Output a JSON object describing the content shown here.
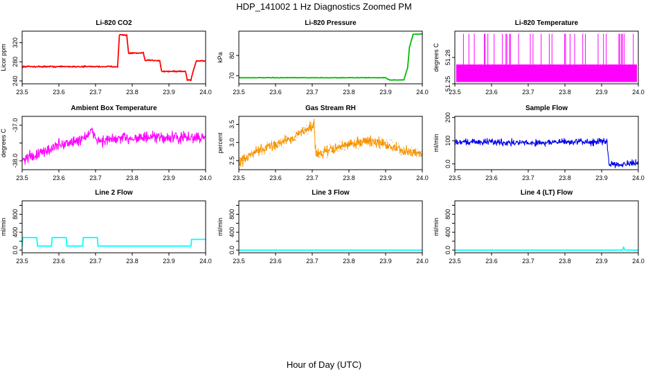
{
  "figure": {
    "title": "HDP_141002  1 Hz Diagnostics Zoomed PM",
    "xlabel": "Hour of Day (UTC)"
  },
  "chart_data": [
    {
      "type": "line",
      "title": "Li-820 CO2",
      "ylabel": "Licor ppm",
      "color": "#ff0000",
      "xlim": [
        23.5,
        24.0
      ],
      "ylim": [
        234,
        344
      ],
      "xticks": [
        23.5,
        23.6,
        23.7,
        23.8,
        23.9,
        24.0
      ],
      "yticks": [
        240,
        280,
        320
      ],
      "pattern": "steps",
      "noise": 1.2,
      "points": [
        [
          23.5,
          270
        ],
        [
          23.76,
          270
        ],
        [
          23.765,
          336
        ],
        [
          23.785,
          336
        ],
        [
          23.79,
          298
        ],
        [
          23.83,
          298
        ],
        [
          23.835,
          283
        ],
        [
          23.875,
          283
        ],
        [
          23.88,
          260
        ],
        [
          23.945,
          260
        ],
        [
          23.95,
          242
        ],
        [
          23.96,
          242
        ],
        [
          23.965,
          258
        ],
        [
          23.975,
          282
        ],
        [
          24.0,
          282
        ]
      ]
    },
    {
      "type": "line",
      "title": "Li-820 Pressure",
      "ylabel": "kPa",
      "color": "#00bb00",
      "xlim": [
        23.5,
        24.0
      ],
      "ylim": [
        66,
        92
      ],
      "xticks": [
        23.5,
        23.6,
        23.7,
        23.8,
        23.9,
        24.0
      ],
      "yticks": [
        70,
        80
      ],
      "pattern": "steps",
      "noise": 0.12,
      "points": [
        [
          23.5,
          69.0
        ],
        [
          23.9,
          69.0
        ],
        [
          23.91,
          67.9
        ],
        [
          23.95,
          67.9
        ],
        [
          23.96,
          74
        ],
        [
          23.965,
          84
        ],
        [
          23.975,
          90.5
        ],
        [
          24.0,
          90.5
        ]
      ]
    },
    {
      "type": "line",
      "title": "Li-820 Temperature",
      "ylabel": "degrees C",
      "color": "#ff00ff",
      "xlim": [
        23.5,
        24.0
      ],
      "ylim": [
        51.25,
        51.31
      ],
      "xticks": [
        23.5,
        23.6,
        23.7,
        23.8,
        23.9,
        24.0
      ],
      "yticks": [
        51.25,
        51.28
      ],
      "pattern": "binary",
      "low": 51.252,
      "high": 51.272,
      "spike": 51.307,
      "spike_prob": 0.18
    },
    {
      "type": "line",
      "title": "Ambient Box Temperature",
      "ylabel": "degrees C",
      "color": "#ff00ff",
      "xlim": [
        23.5,
        24.0
      ],
      "ylim": [
        -38.25,
        -36.75
      ],
      "xticks": [
        23.5,
        23.6,
        23.7,
        23.8,
        23.9,
        24.0
      ],
      "yticks": [
        -38.0,
        -37.5,
        -37.0
      ],
      "ytick_labels": [
        "-38.0",
        "",
        "-37.0"
      ],
      "pattern": "noisy",
      "noise": 0.14,
      "points": [
        [
          23.5,
          -37.95
        ],
        [
          23.55,
          -37.8
        ],
        [
          23.6,
          -37.55
        ],
        [
          23.65,
          -37.45
        ],
        [
          23.69,
          -37.2
        ],
        [
          23.71,
          -37.45
        ],
        [
          23.75,
          -37.4
        ],
        [
          23.8,
          -37.35
        ],
        [
          23.9,
          -37.35
        ],
        [
          24.0,
          -37.35
        ]
      ]
    },
    {
      "type": "line",
      "title": "Gas Stream RH",
      "ylabel": "percent",
      "color": "#ff9900",
      "xlim": [
        23.5,
        24.0
      ],
      "ylim": [
        2.25,
        3.72
      ],
      "xticks": [
        23.5,
        23.6,
        23.7,
        23.8,
        23.9,
        24.0
      ],
      "yticks": [
        2.5,
        3.0,
        3.5
      ],
      "pattern": "noisy",
      "noise": 0.12,
      "points": [
        [
          23.5,
          2.45
        ],
        [
          23.55,
          2.75
        ],
        [
          23.6,
          2.95
        ],
        [
          23.65,
          3.15
        ],
        [
          23.69,
          3.4
        ],
        [
          23.705,
          3.5
        ],
        [
          23.71,
          2.65
        ],
        [
          23.75,
          2.8
        ],
        [
          23.8,
          2.95
        ],
        [
          23.85,
          3.05
        ],
        [
          23.9,
          2.95
        ],
        [
          23.95,
          2.75
        ],
        [
          24.0,
          2.7
        ]
      ]
    },
    {
      "type": "line",
      "title": "Sample Flow",
      "ylabel": "ml/min",
      "color": "#0000ee",
      "xlim": [
        23.5,
        24.0
      ],
      "ylim": [
        -25,
        205
      ],
      "xticks": [
        23.5,
        23.6,
        23.7,
        23.8,
        23.9,
        24.0
      ],
      "yticks": [
        0,
        100,
        200
      ],
      "pattern": "noisy",
      "noise": 12,
      "points": [
        [
          23.5,
          95
        ],
        [
          23.6,
          95
        ],
        [
          23.7,
          90
        ],
        [
          23.8,
          95
        ],
        [
          23.915,
          95
        ],
        [
          23.92,
          0
        ],
        [
          24.0,
          0
        ]
      ]
    },
    {
      "type": "line",
      "title": "Line 2 Flow",
      "ylabel": "ml/min",
      "color": "#00ffff",
      "xlim": [
        23.5,
        24.0
      ],
      "ylim": [
        -60,
        1100
      ],
      "xticks": [
        23.5,
        23.6,
        23.7,
        23.8,
        23.9,
        24.0
      ],
      "yticks": [
        0,
        400,
        800
      ],
      "ytick_minor": [
        200,
        600,
        1000
      ],
      "pattern": "steps",
      "noise": 0,
      "points": [
        [
          23.5,
          90
        ],
        [
          23.501,
          280
        ],
        [
          23.54,
          280
        ],
        [
          23.541,
          90
        ],
        [
          23.58,
          90
        ],
        [
          23.581,
          280
        ],
        [
          23.62,
          280
        ],
        [
          23.621,
          90
        ],
        [
          23.665,
          90
        ],
        [
          23.666,
          280
        ],
        [
          23.705,
          280
        ],
        [
          23.706,
          90
        ],
        [
          23.96,
          90
        ],
        [
          23.961,
          240
        ],
        [
          24.0,
          240
        ]
      ]
    },
    {
      "type": "line",
      "title": "Line 3 Flow",
      "ylabel": "ml/min",
      "color": "#00ffff",
      "xlim": [
        23.5,
        24.0
      ],
      "ylim": [
        -60,
        1100
      ],
      "xticks": [
        23.5,
        23.6,
        23.7,
        23.8,
        23.9,
        24.0
      ],
      "yticks": [
        0,
        400,
        800
      ],
      "ytick_minor": [
        200,
        600,
        1000
      ],
      "pattern": "steps",
      "noise": 0,
      "points": [
        [
          23.5,
          0
        ],
        [
          24.0,
          0
        ]
      ]
    },
    {
      "type": "line",
      "title": "Line 4 (LT) Flow",
      "ylabel": "ml/min",
      "color": "#00ffff",
      "xlim": [
        23.5,
        24.0
      ],
      "ylim": [
        -60,
        1100
      ],
      "xticks": [
        23.5,
        23.6,
        23.7,
        23.8,
        23.9,
        24.0
      ],
      "yticks": [
        0,
        400,
        800
      ],
      "ytick_minor": [
        200,
        600,
        1000
      ],
      "pattern": "steps",
      "noise": 0,
      "points": [
        [
          23.5,
          0
        ],
        [
          23.958,
          0
        ],
        [
          23.959,
          70
        ],
        [
          23.961,
          70
        ],
        [
          23.962,
          0
        ],
        [
          24.0,
          0
        ]
      ]
    }
  ]
}
